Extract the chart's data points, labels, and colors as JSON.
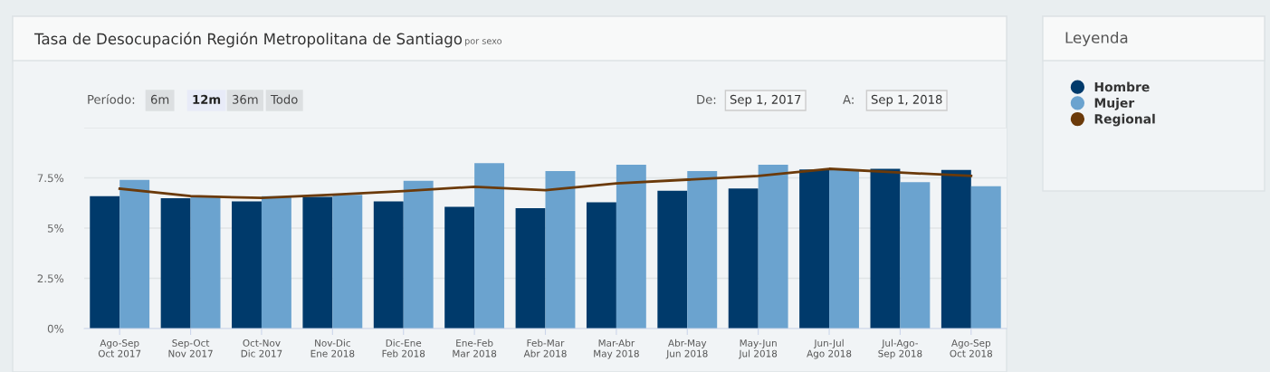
{
  "chart_data": {
    "type": "bar",
    "title": "Tasa de Desocupación Región Metropolitana de Santiago",
    "subtitle": "por sexo",
    "categories": [
      "Ago-Sep\nOct 2017",
      "Sep-Oct\nNov 2017",
      "Oct-Nov\nDic 2017",
      "Nov-Dic\nEne 2018",
      "Dic-Ene\nFeb 2018",
      "Ene-Feb\nMar 2018",
      "Feb-Mar\nAbr 2018",
      "Mar-Abr\nMay 2018",
      "Abr-May\nJun 2018",
      "May-Jun\nJul 2018",
      "Jun-Jul\nAgo 2018",
      "Jul-Ago-\nSep 2018",
      "Ago-Sep\nOct 2018"
    ],
    "series": [
      {
        "name": "Hombre",
        "color": "#003a6b",
        "values": [
          6.59,
          6.49,
          6.33,
          6.55,
          6.33,
          6.06,
          5.99,
          6.28,
          6.86,
          6.97,
          7.92,
          7.95,
          7.89
        ]
      },
      {
        "name": "Mujer",
        "color": "#6ba3cf",
        "values": [
          7.4,
          6.55,
          6.59,
          6.66,
          7.35,
          8.23,
          7.84,
          8.15,
          7.84,
          8.15,
          7.89,
          7.29,
          7.08
        ]
      },
      {
        "name": "Regional",
        "type": "line",
        "color": "#6b3a0a",
        "values": [
          6.96,
          6.59,
          6.5,
          6.66,
          6.84,
          7.06,
          6.89,
          7.22,
          7.41,
          7.6,
          7.95,
          7.76,
          7.6
        ]
      }
    ],
    "ylim": [
      0,
      10
    ],
    "yticks": [
      {
        "value": 0,
        "label": "0%"
      },
      {
        "value": 2.5,
        "label": "2.5%"
      },
      {
        "value": 5,
        "label": "5%"
      },
      {
        "value": 7.5,
        "label": "7.5%"
      },
      {
        "value": 10,
        "label": null
      }
    ],
    "grid": "y",
    "legend": "right",
    "legend_title": "Leyenda",
    "marker": "none",
    "line_style": "solid",
    "annotations": [
      "Período:",
      "6m",
      "12m",
      "36m",
      "Todo",
      "De:",
      "Sep 1, 2017",
      "A:",
      "Sep 1, 2018"
    ]
  }
}
